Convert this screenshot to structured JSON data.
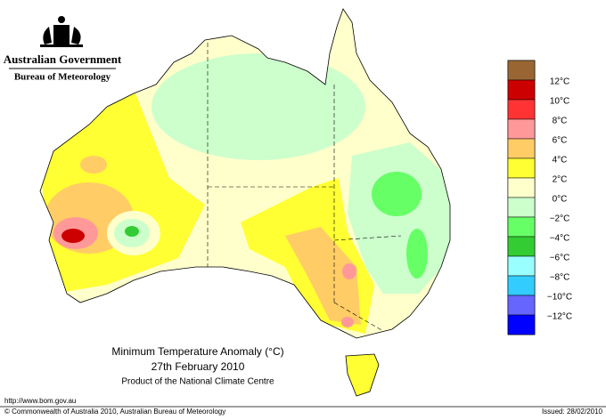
{
  "header": {
    "government": "Australian Government",
    "agency": "Bureau of Meteorology"
  },
  "map": {
    "title": "Minimum Temperature Anomaly (°C)",
    "date": "27th February 2010",
    "product": "Product of the National Climate Centre"
  },
  "legend": {
    "colors": [
      "#996633",
      "#cc0000",
      "#ff3333",
      "#ff9999",
      "#ffcc66",
      "#ffff33",
      "#ffffcc",
      "#ccffcc",
      "#66ff66",
      "#33cc33",
      "#99ffff",
      "#33ccff",
      "#6666ff",
      "#0000ff"
    ],
    "labels": [
      "12°C",
      "10°C",
      "8°C",
      "6°C",
      "4°C",
      "2°C",
      "0°C",
      "−2°C",
      "−4°C",
      "−6°C",
      "−8°C",
      "−10°C",
      "−12°C"
    ]
  },
  "footer": {
    "url": "http://www.bom.gov.au",
    "copyright": "© Commonwealth of Australia 2010, Australian Bureau of Meteorology",
    "issued": "Issued: 28/02/2010"
  }
}
